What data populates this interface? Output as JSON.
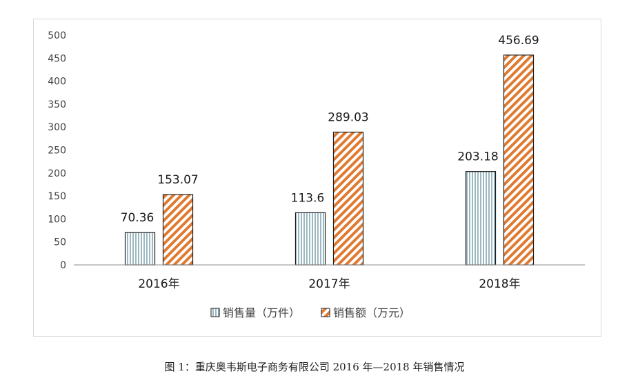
{
  "caption": "图 1：重庆奥韦斯电子商务有限公司 2016 年—2018 年销售情况",
  "chart_data": {
    "type": "bar",
    "categories": [
      "2016年",
      "2017年",
      "2018年"
    ],
    "series": [
      {
        "name": "销售量（万件）",
        "values": [
          70.36,
          113.6,
          203.18
        ],
        "color": "#5b8a96",
        "pattern": "vertical-lines"
      },
      {
        "name": "销售额（万元）",
        "values": [
          153.07,
          289.03,
          456.69
        ],
        "color": "#e07a30",
        "pattern": "diagonal-stripes"
      }
    ],
    "value_labels": [
      [
        "70.36",
        "113.6",
        "203.18"
      ],
      [
        "153.07",
        "289.03",
        "456.69"
      ]
    ],
    "ylim": [
      0,
      500
    ],
    "yticks": [
      "0",
      "50",
      "100",
      "150",
      "200",
      "250",
      "300",
      "350",
      "400",
      "450",
      "500"
    ],
    "grid": false,
    "legend_position": "bottom"
  }
}
